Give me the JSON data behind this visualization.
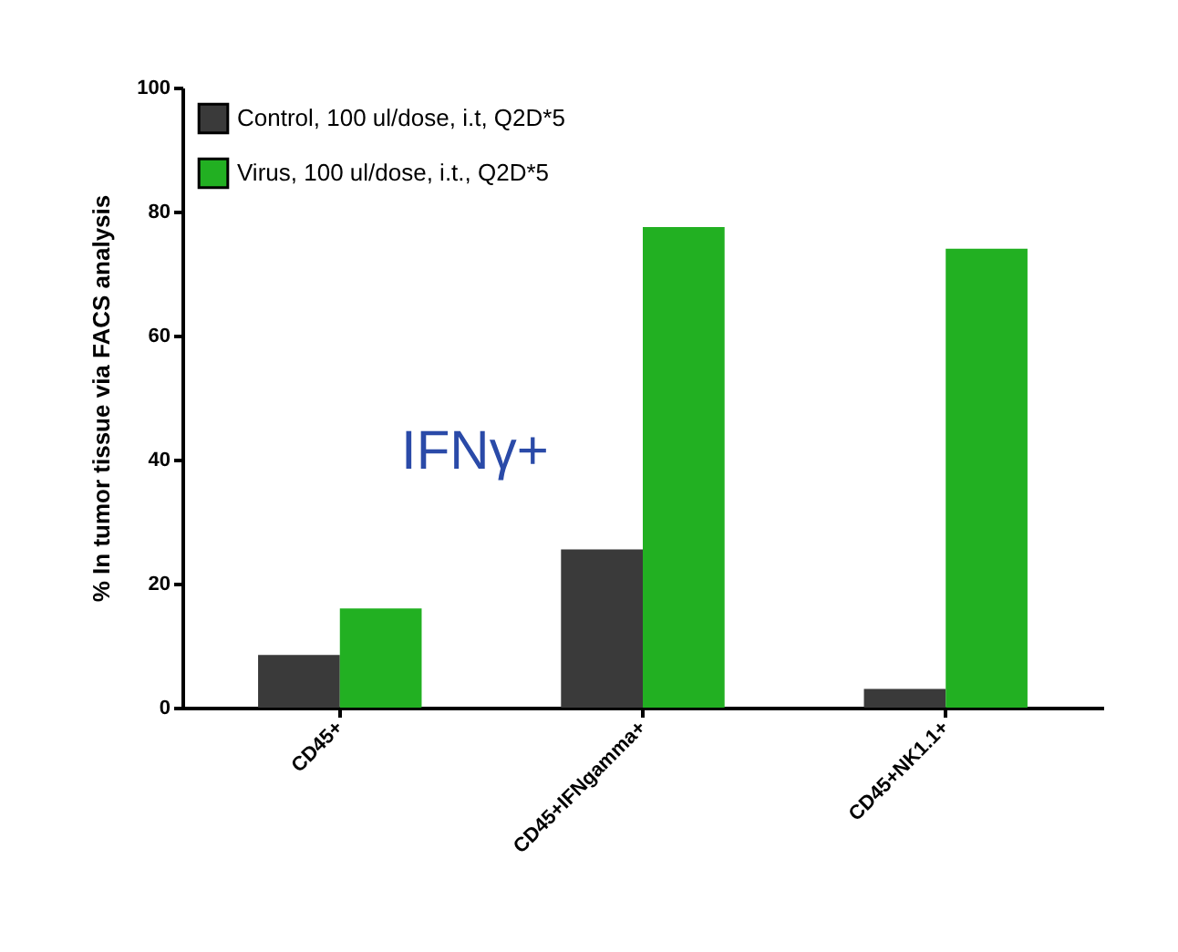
{
  "chart_data": {
    "type": "bar",
    "ylabel": "% In tumor tissue via FACS analysis",
    "categories": [
      "CD45+",
      "CD45+IFNgamma+",
      "CD45+NK1.1+"
    ],
    "series": [
      {
        "name": "Control, 100 ul/dose, i.t, Q2D*5",
        "color": "#3a3a3a",
        "values": [
          8.5,
          25.5,
          3
        ]
      },
      {
        "name": "Virus, 100 ul/dose, i.t., Q2D*5",
        "color": "#22b022",
        "values": [
          16,
          77.5,
          74
        ]
      }
    ],
    "ylim": [
      0,
      100
    ],
    "yticks": [
      0,
      20,
      40,
      60,
      80,
      100
    ],
    "grid": false,
    "legend": "top left",
    "annotations": [
      "IFNγ+"
    ]
  }
}
